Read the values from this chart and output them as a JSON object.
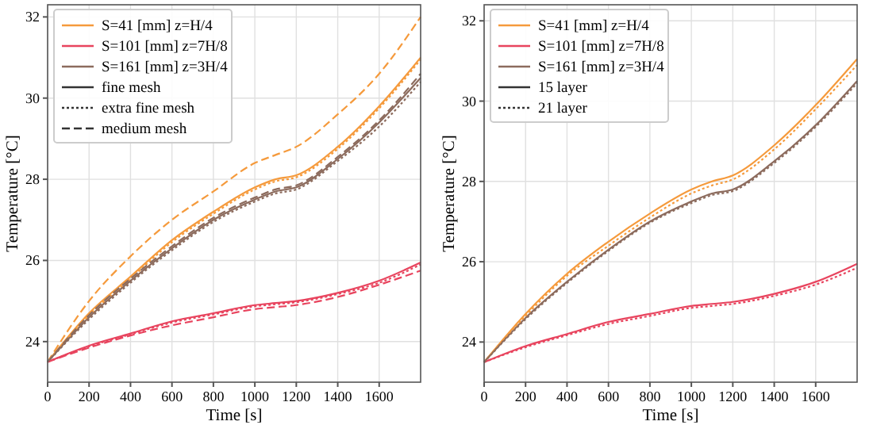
{
  "chart_data": [
    {
      "type": "line",
      "xlabel": "Time [s]",
      "ylabel": "Temperature [°C]",
      "xlim": [
        0,
        1800
      ],
      "xticks": [
        0,
        200,
        400,
        600,
        800,
        1000,
        1200,
        1400,
        1600
      ],
      "ylim": [
        23,
        32.3
      ],
      "yticks": [
        24,
        26,
        28,
        30,
        32
      ],
      "grid": true,
      "legend": "top left",
      "x": [
        0,
        200,
        400,
        600,
        800,
        1000,
        1100,
        1200,
        1400,
        1600,
        1800
      ],
      "annotations": [
        "fine mesh",
        "extra fine mesh",
        "medium mesh"
      ],
      "series": [
        {
          "name": "S=41 [mm] z=H/4",
          "color": "#f59a3c",
          "line_style": "solid",
          "values": [
            23.5,
            24.7,
            25.6,
            26.5,
            27.2,
            27.8,
            28.0,
            28.1,
            28.8,
            29.8,
            31.0
          ]
        },
        {
          "name": "S=101 [mm] z=7H/8",
          "color": "#e8445e",
          "line_style": "solid",
          "values": [
            23.5,
            23.9,
            24.2,
            24.5,
            24.7,
            24.9,
            24.95,
            25.0,
            25.2,
            25.5,
            25.95
          ]
        },
        {
          "name": "S=161 [mm] z=3H/4",
          "color": "#8c6b5d",
          "line_style": "solid",
          "values": [
            23.5,
            24.6,
            25.5,
            26.3,
            27.0,
            27.5,
            27.7,
            27.8,
            28.5,
            29.4,
            30.5
          ]
        },
        {
          "color": "#f59a3c",
          "line_style": "dotted",
          "values": [
            23.5,
            24.65,
            25.55,
            26.45,
            27.15,
            27.75,
            27.95,
            28.05,
            28.75,
            29.75,
            30.95
          ]
        },
        {
          "color": "#e8445e",
          "line_style": "dotted",
          "values": [
            23.5,
            23.88,
            24.18,
            24.47,
            24.67,
            24.87,
            24.92,
            24.97,
            25.17,
            25.45,
            25.9
          ]
        },
        {
          "color": "#8c6b5d",
          "line_style": "dotted",
          "values": [
            23.5,
            24.55,
            25.45,
            26.25,
            26.95,
            27.45,
            27.65,
            27.75,
            28.45,
            29.3,
            30.4
          ]
        },
        {
          "color": "#f59a3c",
          "line_style": "dashed",
          "values": [
            23.5,
            25.0,
            26.1,
            27.0,
            27.7,
            28.4,
            28.6,
            28.8,
            29.6,
            30.6,
            32.0
          ]
        },
        {
          "color": "#e8445e",
          "line_style": "dashed",
          "values": [
            23.5,
            23.85,
            24.15,
            24.4,
            24.6,
            24.8,
            24.85,
            24.9,
            25.1,
            25.4,
            25.75
          ]
        },
        {
          "color": "#8c6b5d",
          "line_style": "dashed",
          "values": [
            23.5,
            24.65,
            25.55,
            26.35,
            27.05,
            27.55,
            27.75,
            27.85,
            28.55,
            29.45,
            30.6
          ]
        }
      ]
    },
    {
      "type": "line",
      "xlabel": "Time [s]",
      "ylabel": "Temperature [°C]",
      "xlim": [
        0,
        1800
      ],
      "xticks": [
        0,
        200,
        400,
        600,
        800,
        1000,
        1200,
        1400,
        1600
      ],
      "ylim": [
        23,
        32.4
      ],
      "yticks": [
        24,
        26,
        28,
        30,
        32
      ],
      "grid": true,
      "legend": "top left",
      "x": [
        0,
        200,
        400,
        600,
        800,
        1000,
        1100,
        1200,
        1400,
        1600,
        1800
      ],
      "annotations": [
        "15 layer",
        "21 layer"
      ],
      "series": [
        {
          "name": "S=41 [mm] z=H/4",
          "color": "#f59a3c",
          "line_style": "solid",
          "values": [
            23.5,
            24.7,
            25.7,
            26.5,
            27.2,
            27.8,
            28.0,
            28.15,
            28.9,
            29.9,
            31.05
          ]
        },
        {
          "name": "S=101 [mm] z=7H/8",
          "color": "#e8445e",
          "line_style": "solid",
          "values": [
            23.5,
            23.9,
            24.2,
            24.5,
            24.7,
            24.9,
            24.95,
            25.0,
            25.2,
            25.5,
            25.95
          ]
        },
        {
          "name": "S=161 [mm] z=3H/4",
          "color": "#8c6b5d",
          "line_style": "solid",
          "values": [
            23.5,
            24.6,
            25.5,
            26.3,
            27.0,
            27.5,
            27.7,
            27.8,
            28.5,
            29.4,
            30.5
          ]
        },
        {
          "color": "#f59a3c",
          "line_style": "dotted",
          "values": [
            23.5,
            24.65,
            25.65,
            26.4,
            27.1,
            27.7,
            27.9,
            28.05,
            28.8,
            29.8,
            30.9
          ]
        },
        {
          "color": "#e8445e",
          "line_style": "dotted",
          "values": [
            23.5,
            23.87,
            24.17,
            24.45,
            24.65,
            24.85,
            24.9,
            24.95,
            25.15,
            25.43,
            25.85
          ]
        },
        {
          "color": "#8c6b5d",
          "line_style": "dotted",
          "values": [
            23.5,
            24.57,
            25.47,
            26.27,
            26.97,
            27.46,
            27.66,
            27.76,
            28.46,
            29.36,
            30.45
          ]
        }
      ]
    }
  ]
}
